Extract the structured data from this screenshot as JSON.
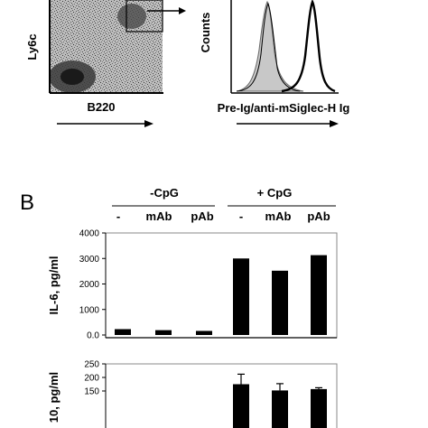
{
  "panel_a": {
    "dotplot": {
      "y_label": "Ly6c",
      "x_label": "B220"
    },
    "histogram": {
      "y_label": "Counts",
      "x_label": "Pre-Ig/anti-mSiglec-H Ig"
    }
  },
  "panel_b": {
    "letter": "B",
    "group_labels": [
      "-CpG",
      "+ CpG"
    ],
    "treatment_labels": [
      "-",
      "mAb",
      "pAb",
      "-",
      "mAb",
      "pAb"
    ]
  },
  "chart_data": [
    {
      "type": "bar",
      "title": "",
      "ylabel": "IL-6, pg/ml",
      "xlabel": "",
      "ylim": [
        0,
        4000
      ],
      "yticks": [
        "4000",
        "3000",
        "2000",
        "1000",
        "0.0"
      ],
      "yticks_values": [
        4000,
        3000,
        2000,
        1000,
        0
      ],
      "categories": [
        "-CpG -",
        "-CpG mAb",
        "-CpG pAb",
        "+ CpG -",
        "+ CpG mAb",
        "+ CpG pAb"
      ],
      "values": [
        230,
        190,
        160,
        3000,
        2520,
        3130
      ],
      "errors": [
        0,
        0,
        0,
        0,
        0,
        0
      ],
      "color": "#000000"
    },
    {
      "type": "bar",
      "title": "",
      "ylabel": "10, pg/ml",
      "xlabel": "",
      "ylim": [
        0,
        250
      ],
      "yticks": [
        "250",
        "200",
        "150"
      ],
      "yticks_values": [
        250,
        200,
        150
      ],
      "categories": [
        "-CpG -",
        "-CpG mAb",
        "-CpG pAb",
        "+ CpG -",
        "+ CpG mAb",
        "+ CpG pAb"
      ],
      "values": [
        null,
        null,
        null,
        175,
        152,
        157
      ],
      "errors": [
        null,
        null,
        null,
        37,
        25,
        5
      ],
      "color": "#000000"
    }
  ]
}
